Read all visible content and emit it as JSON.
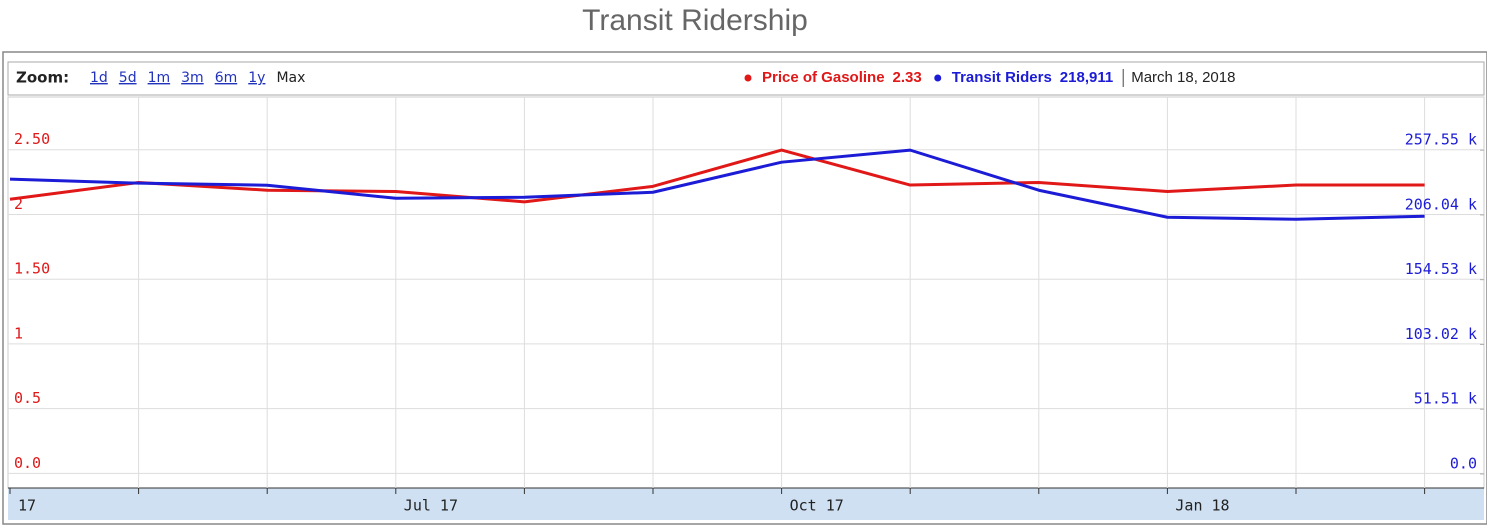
{
  "chart_data": {
    "type": "line",
    "title": "Transit Ridership",
    "zoom_label": "Zoom:",
    "zoom_options": [
      "1d",
      "5d",
      "1m",
      "3m",
      "6m",
      "1y",
      "Max"
    ],
    "readouts": [
      "2.33",
      "218,911"
    ],
    "readout_date": "March 18, 2018",
    "categories": [
      "17",
      null,
      null,
      "Jul 17",
      null,
      null,
      "Oct 17",
      null,
      null,
      "Jan 18",
      null,
      null
    ],
    "series": [
      {
        "name": "Price of Gasoline",
        "color": "#e01818",
        "values": [
          2.04,
          2.17,
          2.11,
          2.1,
          2.02,
          2.14,
          2.42,
          2.15,
          2.17,
          2.1,
          2.15,
          2.15
        ]
      },
      {
        "name": "Transit Riders",
        "color": "#1c1cd6",
        "axis": "y2",
        "values": [
          226500,
          223300,
          221700,
          211300,
          212100,
          216100,
          240000,
          249600,
          217700,
          196200,
          194600,
          197000
        ]
      }
    ],
    "ylim": [
      -0.19,
      2.83
    ],
    "yticks": [
      {
        "value": 0,
        "label": "0.0"
      },
      0.5,
      1,
      {
        "value": 1.5,
        "label": "1.50"
      },
      2,
      {
        "value": 2.5,
        "label": "2.50"
      }
    ],
    "y2lim": [
      -19140,
      291850
    ],
    "y2ticks": [
      {
        "value": 0,
        "label": "0.0"
      },
      {
        "value": 51510,
        "label": "51.51 k"
      },
      {
        "value": 103020,
        "label": "103.02 k"
      },
      {
        "value": 154530,
        "label": "154.53 k"
      },
      {
        "value": 206040,
        "label": "206.04 k"
      },
      {
        "value": 257550,
        "label": "257.55 k"
      }
    ],
    "grid": true
  }
}
